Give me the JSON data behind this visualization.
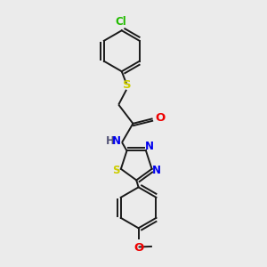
{
  "background_color": "#ebebeb",
  "bond_color": "#1a1a1a",
  "S_color": "#cccc00",
  "N_color": "#0000ee",
  "O_color": "#ee0000",
  "Cl_color": "#22bb00",
  "H_color": "#555577",
  "font_size": 8.5,
  "lw": 1.4,
  "figsize": [
    3.0,
    3.0
  ],
  "dpi": 100,
  "xlim": [
    0,
    10
  ],
  "ylim": [
    0,
    10
  ]
}
